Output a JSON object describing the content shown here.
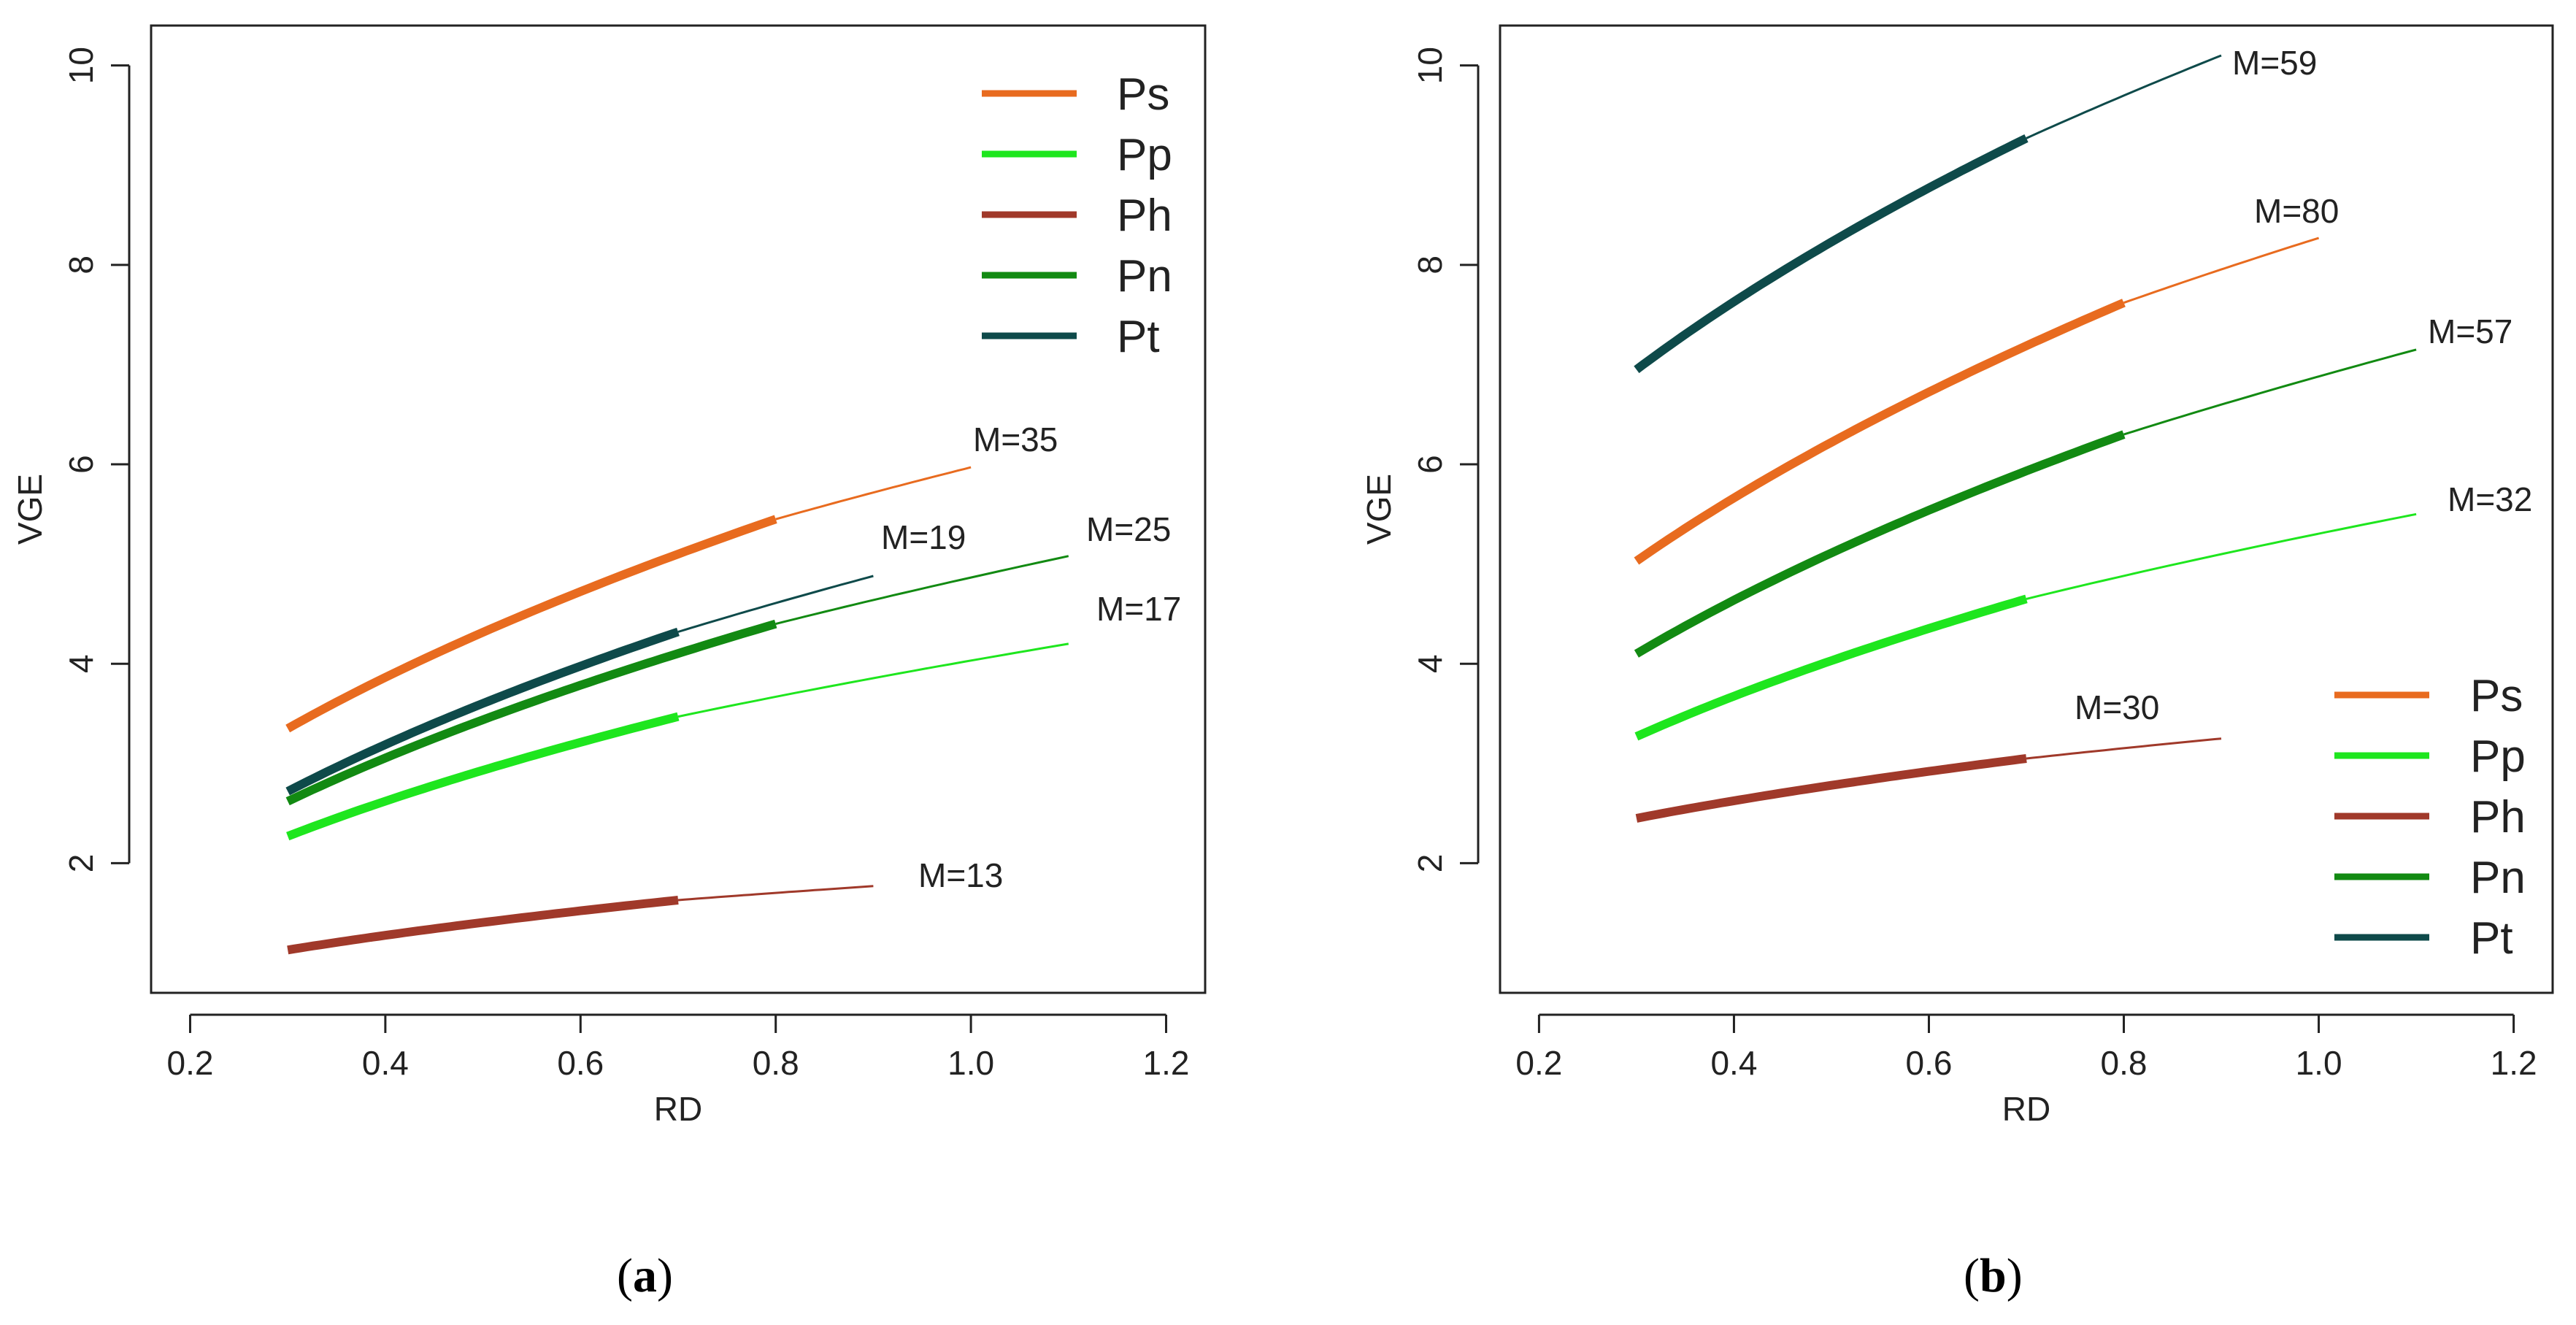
{
  "figure": {
    "caption_a": "a",
    "caption_b": "b"
  },
  "chart_data": [
    {
      "type": "line",
      "panel": "a",
      "xlabel": "RD",
      "ylabel": "VGE",
      "xlim": [
        0.16,
        1.24
      ],
      "ylim": [
        0.7,
        10.4
      ],
      "x_ticks": [
        0.2,
        0.4,
        0.6,
        0.8,
        1.0,
        1.2
      ],
      "x_tick_labels": [
        "0.2",
        "0.4",
        "0.6",
        "0.8",
        "1.0",
        "1.2"
      ],
      "y_ticks": [
        2,
        4,
        6,
        8,
        10
      ],
      "y_tick_labels": [
        "2",
        "4",
        "6",
        "8",
        "10"
      ],
      "legend_position": "top-right",
      "series": [
        {
          "name": "Ps",
          "color": "#e86b1f",
          "x_start": 0.3,
          "y_start": 3.35,
          "x_thick_end": 0.8,
          "y_thick_end": 5.45,
          "x_end": 1.0,
          "y_end": 5.97,
          "label": "M=35"
        },
        {
          "name": "Pp",
          "color": "#1ee61e",
          "x_start": 0.3,
          "y_start": 2.27,
          "x_thick_end": 0.7,
          "y_thick_end": 3.47,
          "x_end": 1.1,
          "y_end": 4.2,
          "label": "M=17"
        },
        {
          "name": "Ph",
          "color": "#a0392a",
          "x_start": 0.3,
          "y_start": 1.13,
          "x_thick_end": 0.7,
          "y_thick_end": 1.63,
          "x_end": 0.9,
          "y_end": 1.77,
          "label": "M=13"
        },
        {
          "name": "Pn",
          "color": "#128a12",
          "x_start": 0.3,
          "y_start": 2.62,
          "x_thick_end": 0.8,
          "y_thick_end": 4.4,
          "x_end": 1.1,
          "y_end": 5.08,
          "label": "M=25"
        },
        {
          "name": "Pt",
          "color": "#0e4a4a",
          "x_start": 0.3,
          "y_start": 2.72,
          "x_thick_end": 0.7,
          "y_thick_end": 4.32,
          "x_end": 0.9,
          "y_end": 4.88,
          "label": "M=19"
        }
      ]
    },
    {
      "type": "line",
      "panel": "b",
      "xlabel": "RD",
      "ylabel": "VGE",
      "xlim": [
        0.16,
        1.24
      ],
      "ylim": [
        0.7,
        10.4
      ],
      "x_ticks": [
        0.2,
        0.4,
        0.6,
        0.8,
        1.0,
        1.2
      ],
      "x_tick_labels": [
        "0.2",
        "0.4",
        "0.6",
        "0.8",
        "1.0",
        "1.2"
      ],
      "y_ticks": [
        2,
        4,
        6,
        8,
        10
      ],
      "y_tick_labels": [
        "2",
        "4",
        "6",
        "8",
        "10"
      ],
      "legend_position": "bottom-right",
      "series": [
        {
          "name": "Ps",
          "color": "#e86b1f",
          "x_start": 0.3,
          "y_start": 5.03,
          "x_thick_end": 0.8,
          "y_thick_end": 7.62,
          "x_end": 1.0,
          "y_end": 8.27,
          "label": "M=80"
        },
        {
          "name": "Pp",
          "color": "#1ee61e",
          "x_start": 0.3,
          "y_start": 3.27,
          "x_thick_end": 0.7,
          "y_thick_end": 4.65,
          "x_end": 1.1,
          "y_end": 5.5,
          "label": "M=32"
        },
        {
          "name": "Ph",
          "color": "#a0392a",
          "x_start": 0.3,
          "y_start": 2.45,
          "x_thick_end": 0.7,
          "y_thick_end": 3.05,
          "x_end": 0.9,
          "y_end": 3.25,
          "label": "M=30"
        },
        {
          "name": "Pn",
          "color": "#128a12",
          "x_start": 0.3,
          "y_start": 4.1,
          "x_thick_end": 0.8,
          "y_thick_end": 6.3,
          "x_end": 1.1,
          "y_end": 7.15,
          "label": "M=57"
        },
        {
          "name": "Pt",
          "color": "#0e4a4a",
          "x_start": 0.3,
          "y_start": 6.95,
          "x_thick_end": 0.7,
          "y_thick_end": 9.27,
          "x_end": 0.9,
          "y_end": 10.1,
          "label": "M=59"
        }
      ]
    }
  ]
}
